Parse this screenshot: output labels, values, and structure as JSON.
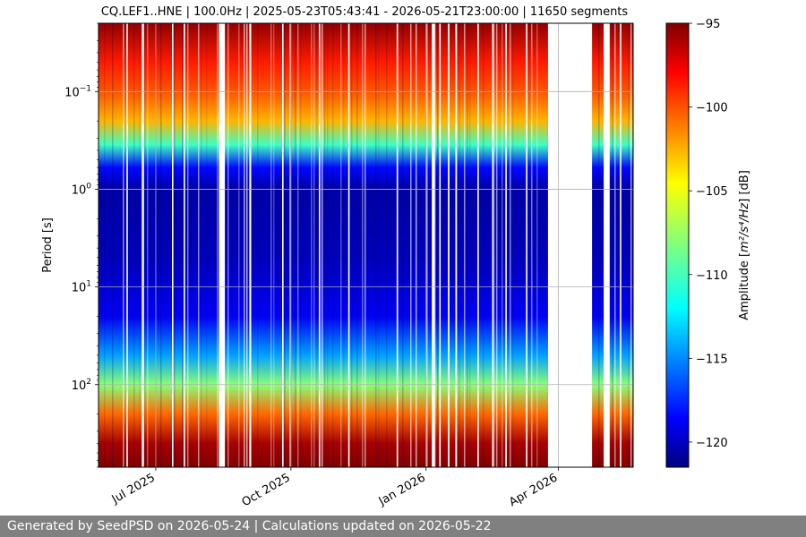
{
  "chart_data": {
    "type": "heatmap",
    "title": "CQ.LEF1..HNE | 100.0Hz | 2025-05-23T05:43:41 - 2026-05-21T23:00:00 | 11650 segments",
    "ylabel": "Period [s]",
    "y_scale": "log",
    "y_inverted": true,
    "ylim": [
      0.02,
      700
    ],
    "y_ticks": [
      {
        "value": 0.1,
        "base": "10",
        "exp": "−1"
      },
      {
        "value": 1,
        "base": "10",
        "exp": "0"
      },
      {
        "value": 10,
        "base": "10",
        "exp": "1"
      },
      {
        "value": 100,
        "base": "10",
        "exp": "2"
      }
    ],
    "xlim": [
      "2025-05-23",
      "2026-05-22"
    ],
    "x_ticks": [
      {
        "date": "2025-07-01",
        "label": "Jul 2025"
      },
      {
        "date": "2025-10-01",
        "label": "Oct 2025"
      },
      {
        "date": "2026-01-01",
        "label": "Jan 2026"
      },
      {
        "date": "2026-04-01",
        "label": "Apr 2026"
      }
    ],
    "grid": true,
    "colormap": "jet",
    "colorbar": {
      "label_prefix": "Amplitude [",
      "label_math": "m²/s⁴/Hz",
      "label_suffix": "] [dB]",
      "range": [
        -121.5,
        -95
      ],
      "ticks": [
        -95,
        -100,
        -105,
        -110,
        -115,
        -120
      ],
      "tick_labels": [
        "−95",
        "−100",
        "−105",
        "−110",
        "−115",
        "−120"
      ]
    },
    "data_gaps": [
      [
        "2025-06-11",
        "2025-06-12"
      ],
      [
        "2025-06-22",
        "2025-06-23"
      ],
      [
        "2025-07-12",
        "2025-07-13"
      ],
      [
        "2025-07-20",
        "2025-07-21"
      ],
      [
        "2025-08-13",
        "2025-08-17"
      ],
      [
        "2025-09-03",
        "2025-09-04"
      ],
      [
        "2025-09-25",
        "2025-09-26"
      ],
      [
        "2025-10-20",
        "2025-10-21"
      ],
      [
        "2025-11-09",
        "2025-11-10"
      ],
      [
        "2025-12-12",
        "2025-12-13"
      ],
      [
        "2026-01-05",
        "2026-01-07"
      ],
      [
        "2026-01-10",
        "2026-01-11"
      ],
      [
        "2026-01-16",
        "2026-01-17"
      ],
      [
        "2026-01-21",
        "2026-01-22"
      ],
      [
        "2026-02-05",
        "2026-02-06"
      ],
      [
        "2026-02-15",
        "2026-02-16"
      ],
      [
        "2026-02-24",
        "2026-02-25"
      ],
      [
        "2026-03-10",
        "2026-03-11"
      ],
      [
        "2026-03-25",
        "2026-04-24"
      ],
      [
        "2026-05-02",
        "2026-05-06"
      ],
      [
        "2026-05-13",
        "2026-05-14"
      ]
    ],
    "amplitude_profile": [
      {
        "period": 0.02,
        "db": -95.5
      },
      {
        "period": 0.05,
        "db": -99
      },
      {
        "period": 0.1,
        "db": -100.5
      },
      {
        "period": 0.2,
        "db": -103
      },
      {
        "period": 0.35,
        "db": -110
      },
      {
        "period": 0.6,
        "db": -118
      },
      {
        "period": 1,
        "db": -120.5
      },
      {
        "period": 5,
        "db": -120
      },
      {
        "period": 20,
        "db": -118.5
      },
      {
        "period": 50,
        "db": -114
      },
      {
        "period": 100,
        "db": -108
      },
      {
        "period": 200,
        "db": -101
      },
      {
        "period": 400,
        "db": -96
      },
      {
        "period": 700,
        "db": -95
      }
    ]
  },
  "footer": {
    "text": "Generated by SeedPSD on 2026-05-24 | Calculations updated on 2026-05-22"
  }
}
